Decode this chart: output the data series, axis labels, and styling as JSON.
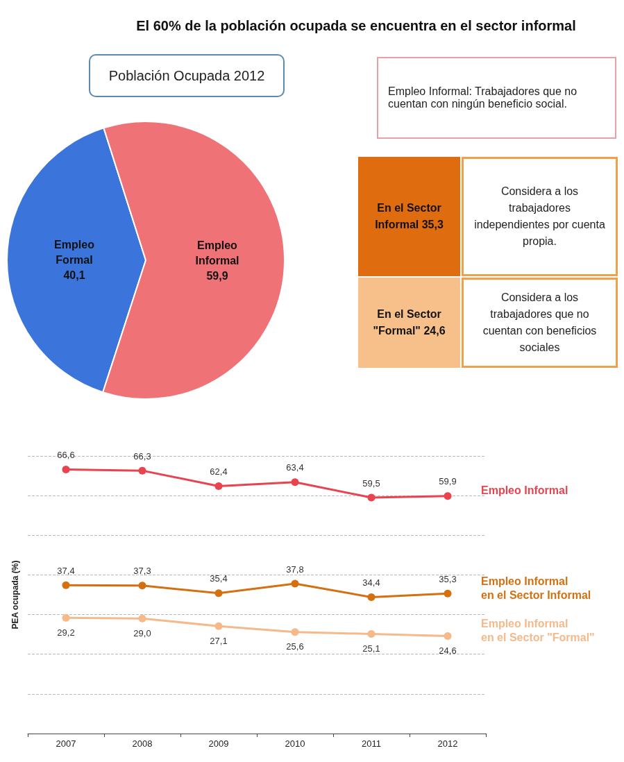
{
  "chart_data": [
    {
      "type": "pie",
      "title": "El 60% de la población ocupada se encuentra en el sector informal",
      "subtitle": "Población Ocupada 2012",
      "categories": [
        "Empleo Formal",
        "Empleo Informal"
      ],
      "values": [
        40.1,
        59.9
      ],
      "value_labels": [
        "40,1",
        "59,9"
      ],
      "colors": [
        "#3b74da",
        "#ef7276"
      ],
      "annotations": [
        "Empleo Informal: Trabajadores que no cuentan con ningún beneficio social.",
        "En el Sector Informal 35,3",
        "Considera a los trabajadores independientes por cuenta propia.",
        "En el Sector \"Formal\" 24,6",
        "Considera a los trabajadores que no cuentan con beneficios sociales"
      ]
    },
    {
      "type": "line",
      "ylabel": "PEA ocupada (%)",
      "categories": [
        "2007",
        "2008",
        "2009",
        "2010",
        "2011",
        "2012"
      ],
      "series": [
        {
          "name": "Empleo Informal",
          "color": "#e8434f",
          "values": [
            66.6,
            66.3,
            62.4,
            63.4,
            59.5,
            59.9
          ],
          "value_labels": [
            "66,6",
            "66,3",
            "62,4",
            "63,4",
            "59,5",
            "59,9"
          ]
        },
        {
          "name": "Empleo Informal\nen el Sector Informal",
          "color": "#d4700f",
          "values": [
            37.4,
            37.3,
            35.4,
            37.8,
            34.4,
            35.3
          ],
          "value_labels": [
            "37,4",
            "37,3",
            "35,4",
            "37,8",
            "34,4",
            "35,3"
          ]
        },
        {
          "name": "Empleo Informal\nen el Sector \"Formal\"",
          "color": "#f5b98a",
          "values": [
            29.2,
            29.0,
            27.1,
            25.6,
            25.1,
            24.6
          ],
          "value_labels": [
            "29,2",
            "29,0",
            "27,1",
            "25,6",
            "25,1",
            "24,6"
          ]
        }
      ],
      "grid": true,
      "tick_labels": "x",
      "marker": "circle"
    }
  ]
}
